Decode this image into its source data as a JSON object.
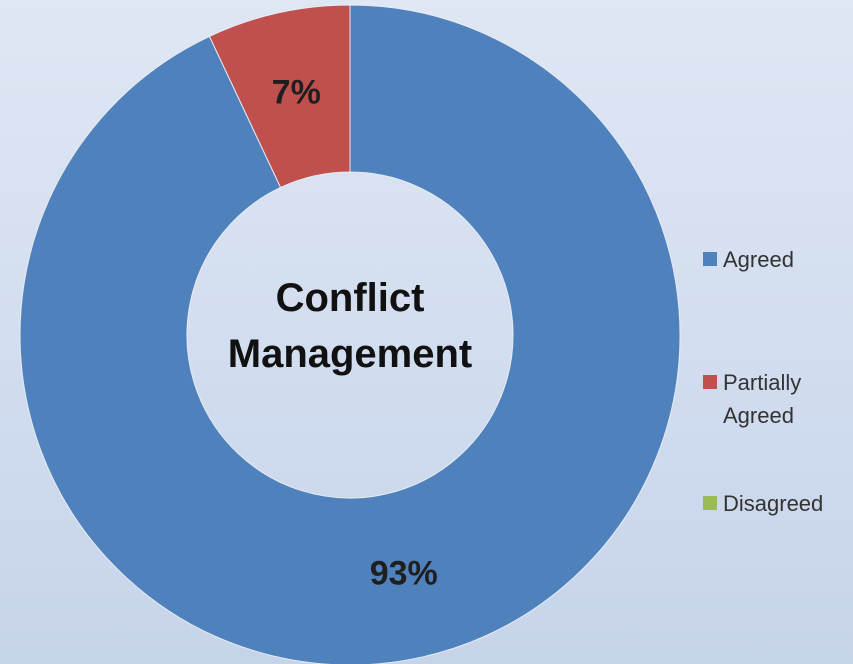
{
  "chart_data": {
    "type": "donut",
    "title": "Conflict Management",
    "categories": [
      "Agreed",
      "Partially Agreed",
      "Disagreed"
    ],
    "values": [
      93,
      7,
      0
    ],
    "value_labels": [
      "93%",
      "7%",
      null
    ],
    "colors": [
      "#4f81bd",
      "#c0504d",
      "#9bbb59"
    ],
    "legend": "right"
  }
}
